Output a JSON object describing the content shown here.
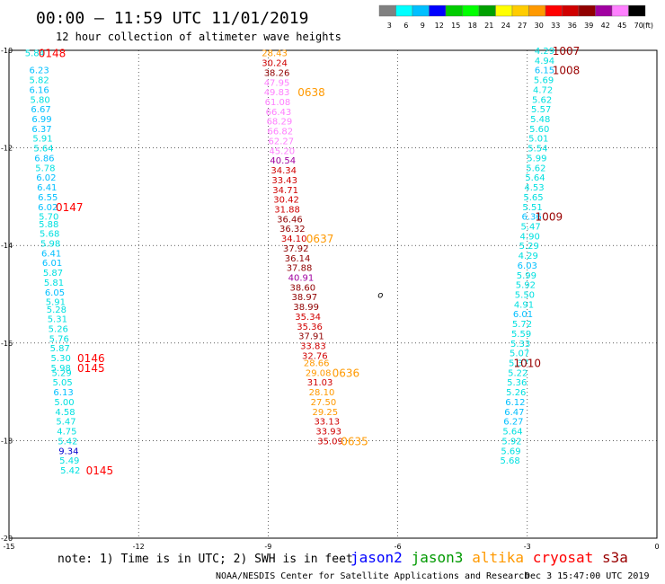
{
  "header": {
    "title": "00:00 – 11:59 UTC 11/01/2019",
    "subtitle": "12 hour collection of altimeter wave heights",
    "colorbar_unit": "(ft)",
    "colorbar_ticks": [
      "3",
      "6",
      "9",
      "12",
      "15",
      "18",
      "21",
      "24",
      "27",
      "30",
      "33",
      "36",
      "39",
      "42",
      "45",
      "70"
    ],
    "colorbar_colors": [
      "#808080",
      "#00ffff",
      "#00bfff",
      "#0000ff",
      "#00cc00",
      "#00ff00",
      "#00a000",
      "#ffff00",
      "#ffcc00",
      "#ff9900",
      "#ff0000",
      "#d00000",
      "#900000",
      "#a000a0",
      "#ff80ff",
      "#000000"
    ]
  },
  "footer": {
    "note": "note:  1) Time is in UTC; 2) SWH is in feet",
    "legend": [
      {
        "label": "jason2",
        "color": "#0000ff"
      },
      {
        "label": "jason3",
        "color": "#009900"
      },
      {
        "label": "altika",
        "color": "#ff9900"
      },
      {
        "label": "cryosat",
        "color": "#ff0000"
      },
      {
        "label": "s3a",
        "color": "#990000"
      }
    ],
    "credit": "NOAA/NESDIS Center for Satellite Applications and Research",
    "timestamp": "Dec  3 15:47:00 UTC 2019"
  },
  "chart_data": {
    "type": "scatter",
    "xlim": [
      -15,
      0
    ],
    "ylim": [
      -20,
      -10
    ],
    "xticks": [
      "-15",
      "-12",
      "-9",
      "-6",
      "-3",
      "0"
    ],
    "yticks": [
      "-10",
      "-12",
      "-14",
      "-16",
      "-18",
      "-20"
    ],
    "grid": true,
    "tracks": [
      {
        "name": "left",
        "points": [
          {
            "x": -14.4,
            "y": -10.05,
            "v": "5.84",
            "c": "#00e0e0"
          },
          {
            "x": -14.3,
            "y": -10.4,
            "v": "6.23",
            "c": "#00bfff"
          },
          {
            "x": -14.3,
            "y": -10.6,
            "v": "5.82",
            "c": "#00e0e0"
          },
          {
            "x": -14.3,
            "y": -10.8,
            "v": "6.16",
            "c": "#00bfff"
          },
          {
            "x": -14.28,
            "y": -11.0,
            "v": "5.80",
            "c": "#00e0e0"
          },
          {
            "x": -14.26,
            "y": -11.2,
            "v": "6.67",
            "c": "#00bfff"
          },
          {
            "x": -14.24,
            "y": -11.4,
            "v": "6.99",
            "c": "#00bfff"
          },
          {
            "x": -14.24,
            "y": -11.6,
            "v": "6.37",
            "c": "#00bfff"
          },
          {
            "x": -14.22,
            "y": -11.8,
            "v": "5.91",
            "c": "#00e0e0"
          },
          {
            "x": -14.2,
            "y": -12.0,
            "v": "5.64",
            "c": "#00e0e0"
          },
          {
            "x": -14.18,
            "y": -12.2,
            "v": "6.86",
            "c": "#00bfff"
          },
          {
            "x": -14.16,
            "y": -12.4,
            "v": "5.78",
            "c": "#00e0e0"
          },
          {
            "x": -14.14,
            "y": -12.6,
            "v": "6.02",
            "c": "#00bfff"
          },
          {
            "x": -14.12,
            "y": -12.8,
            "v": "6.41",
            "c": "#00bfff"
          },
          {
            "x": -14.1,
            "y": -13.0,
            "v": "6.55",
            "c": "#00bfff"
          },
          {
            "x": -14.1,
            "y": -13.2,
            "v": "6.02",
            "c": "#00bfff"
          },
          {
            "x": -14.08,
            "y": -13.4,
            "v": "5.70",
            "c": "#00e0e0"
          },
          {
            "x": -14.08,
            "y": -13.55,
            "v": "5.88",
            "c": "#00e0e0"
          },
          {
            "x": -14.06,
            "y": -13.75,
            "v": "5.68",
            "c": "#00e0e0"
          },
          {
            "x": -14.04,
            "y": -13.95,
            "v": "5.98",
            "c": "#00e0e0"
          },
          {
            "x": -14.02,
            "y": -14.15,
            "v": "6.41",
            "c": "#00bfff"
          },
          {
            "x": -14.0,
            "y": -14.35,
            "v": "6.01",
            "c": "#00bfff"
          },
          {
            "x": -13.98,
            "y": -14.55,
            "v": "5.87",
            "c": "#00e0e0"
          },
          {
            "x": -13.96,
            "y": -14.75,
            "v": "5.81",
            "c": "#00e0e0"
          },
          {
            "x": -13.94,
            "y": -14.95,
            "v": "6.05",
            "c": "#00bfff"
          },
          {
            "x": -13.92,
            "y": -15.15,
            "v": "5.91",
            "c": "#00e0e0"
          },
          {
            "x": -13.9,
            "y": -15.3,
            "v": "5.28",
            "c": "#00e0e0"
          },
          {
            "x": -13.88,
            "y": -15.5,
            "v": "5.31",
            "c": "#00e0e0"
          },
          {
            "x": -13.86,
            "y": -15.7,
            "v": "5.26",
            "c": "#00e0e0"
          },
          {
            "x": -13.84,
            "y": -15.9,
            "v": "5.76",
            "c": "#00e0e0"
          },
          {
            "x": -13.82,
            "y": -16.1,
            "v": "5.87",
            "c": "#00e0e0"
          },
          {
            "x": -13.8,
            "y": -16.3,
            "v": "5.30",
            "c": "#00e0e0"
          },
          {
            "x": -13.8,
            "y": -16.5,
            "v": "5.98",
            "c": "#00e0e0"
          },
          {
            "x": -13.78,
            "y": -16.6,
            "v": "5.29",
            "c": "#00e0e0"
          },
          {
            "x": -13.76,
            "y": -16.8,
            "v": "5.05",
            "c": "#00e0e0"
          },
          {
            "x": -13.74,
            "y": -17.0,
            "v": "6.13",
            "c": "#00bfff"
          },
          {
            "x": -13.72,
            "y": -17.2,
            "v": "5.00",
            "c": "#00e0e0"
          },
          {
            "x": -13.7,
            "y": -17.4,
            "v": "4.58",
            "c": "#00e0e0"
          },
          {
            "x": -13.68,
            "y": -17.6,
            "v": "5.47",
            "c": "#00e0e0"
          },
          {
            "x": -13.66,
            "y": -17.8,
            "v": "4.75",
            "c": "#00e0e0"
          },
          {
            "x": -13.64,
            "y": -18.0,
            "v": "5.42",
            "c": "#00e0e0"
          },
          {
            "x": -13.62,
            "y": -18.2,
            "v": "9.34",
            "c": "#0000cc"
          },
          {
            "x": -13.6,
            "y": -18.4,
            "v": "5.49",
            "c": "#00e0e0"
          },
          {
            "x": -13.58,
            "y": -18.6,
            "v": "5.42",
            "c": "#00e0e0"
          }
        ]
      },
      {
        "name": "middle",
        "points": [
          {
            "x": -8.85,
            "y": -10.05,
            "v": "28.43",
            "c": "#ff9900"
          },
          {
            "x": -8.85,
            "y": -10.25,
            "v": "30.24",
            "c": "#d00000"
          },
          {
            "x": -8.8,
            "y": -10.45,
            "v": "38.26",
            "c": "#900000"
          },
          {
            "x": -8.8,
            "y": -10.65,
            "v": "47.95",
            "c": "#ff80ff"
          },
          {
            "x": -8.8,
            "y": -10.85,
            "v": "49.83",
            "c": "#ff80ff"
          },
          {
            "x": -8.78,
            "y": -11.05,
            "v": "61.08",
            "c": "#ff80ff"
          },
          {
            "x": -8.76,
            "y": -11.25,
            "v": "66.43",
            "c": "#ff80ff"
          },
          {
            "x": -8.74,
            "y": -11.45,
            "v": "68.29",
            "c": "#ff80ff"
          },
          {
            "x": -8.72,
            "y": -11.65,
            "v": "66.82",
            "c": "#ff80ff"
          },
          {
            "x": -8.7,
            "y": -11.85,
            "v": "62.27",
            "c": "#ff80ff"
          },
          {
            "x": -8.68,
            "y": -12.05,
            "v": "45.20",
            "c": "#ff80ff"
          },
          {
            "x": -8.66,
            "y": -12.25,
            "v": "40.54",
            "c": "#a000a0"
          },
          {
            "x": -8.64,
            "y": -12.45,
            "v": "34.34",
            "c": "#d00000"
          },
          {
            "x": -8.62,
            "y": -12.65,
            "v": "33.43",
            "c": "#d00000"
          },
          {
            "x": -8.6,
            "y": -12.85,
            "v": "34.71",
            "c": "#d00000"
          },
          {
            "x": -8.58,
            "y": -13.05,
            "v": "30.42",
            "c": "#d00000"
          },
          {
            "x": -8.56,
            "y": -13.25,
            "v": "31.88",
            "c": "#d00000"
          },
          {
            "x": -8.5,
            "y": -13.45,
            "v": "36.46",
            "c": "#900000"
          },
          {
            "x": -8.44,
            "y": -13.65,
            "v": "36.32",
            "c": "#900000"
          },
          {
            "x": -8.4,
            "y": -13.85,
            "v": "34.10",
            "c": "#d00000"
          },
          {
            "x": -8.36,
            "y": -14.05,
            "v": "37.92",
            "c": "#900000"
          },
          {
            "x": -8.32,
            "y": -14.25,
            "v": "36.14",
            "c": "#900000"
          },
          {
            "x": -8.28,
            "y": -14.45,
            "v": "37.88",
            "c": "#900000"
          },
          {
            "x": -8.24,
            "y": -14.65,
            "v": "40.91",
            "c": "#a000a0"
          },
          {
            "x": -8.2,
            "y": -14.85,
            "v": "38.60",
            "c": "#900000"
          },
          {
            "x": -8.16,
            "y": -15.05,
            "v": "38.97",
            "c": "#900000"
          },
          {
            "x": -8.12,
            "y": -15.25,
            "v": "38.99",
            "c": "#900000"
          },
          {
            "x": -8.08,
            "y": -15.45,
            "v": "35.34",
            "c": "#d00000"
          },
          {
            "x": -8.04,
            "y": -15.65,
            "v": "35.36",
            "c": "#d00000"
          },
          {
            "x": -8.0,
            "y": -15.85,
            "v": "37.91",
            "c": "#900000"
          },
          {
            "x": -7.96,
            "y": -16.05,
            "v": "33.83",
            "c": "#d00000"
          },
          {
            "x": -7.92,
            "y": -16.25,
            "v": "32.76",
            "c": "#d00000"
          },
          {
            "x": -7.88,
            "y": -16.4,
            "v": "28.66",
            "c": "#ff9900"
          },
          {
            "x": -7.84,
            "y": -16.6,
            "v": "29.08",
            "c": "#ff9900"
          },
          {
            "x": -7.8,
            "y": -16.8,
            "v": "31.03",
            "c": "#d00000"
          },
          {
            "x": -7.76,
            "y": -17.0,
            "v": "28.10",
            "c": "#ff9900"
          },
          {
            "x": -7.72,
            "y": -17.2,
            "v": "27.50",
            "c": "#ff9900"
          },
          {
            "x": -7.68,
            "y": -17.4,
            "v": "29.25",
            "c": "#ff9900"
          },
          {
            "x": -7.64,
            "y": -17.6,
            "v": "33.13",
            "c": "#d00000"
          },
          {
            "x": -7.6,
            "y": -17.8,
            "v": "33.93",
            "c": "#d00000"
          },
          {
            "x": -7.56,
            "y": -18.0,
            "v": "35.09",
            "c": "#d00000"
          }
        ]
      },
      {
        "name": "right",
        "points": [
          {
            "x": -2.6,
            "y": -10.0,
            "v": "4.29",
            "c": "#00e0e0"
          },
          {
            "x": -2.6,
            "y": -10.2,
            "v": "4.94",
            "c": "#00e0e0"
          },
          {
            "x": -2.6,
            "y": -10.4,
            "v": "6.15",
            "c": "#00bfff"
          },
          {
            "x": -2.62,
            "y": -10.6,
            "v": "5.69",
            "c": "#00e0e0"
          },
          {
            "x": -2.64,
            "y": -10.8,
            "v": "4.72",
            "c": "#00e0e0"
          },
          {
            "x": -2.66,
            "y": -11.0,
            "v": "5.62",
            "c": "#00e0e0"
          },
          {
            "x": -2.68,
            "y": -11.2,
            "v": "5.57",
            "c": "#00e0e0"
          },
          {
            "x": -2.7,
            "y": -11.4,
            "v": "5.48",
            "c": "#00e0e0"
          },
          {
            "x": -2.72,
            "y": -11.6,
            "v": "5.60",
            "c": "#00e0e0"
          },
          {
            "x": -2.74,
            "y": -11.8,
            "v": "5.01",
            "c": "#00e0e0"
          },
          {
            "x": -2.76,
            "y": -12.0,
            "v": "5.54",
            "c": "#00e0e0"
          },
          {
            "x": -2.78,
            "y": -12.2,
            "v": "5.99",
            "c": "#00e0e0"
          },
          {
            "x": -2.8,
            "y": -12.4,
            "v": "5.62",
            "c": "#00e0e0"
          },
          {
            "x": -2.82,
            "y": -12.6,
            "v": "5.64",
            "c": "#00e0e0"
          },
          {
            "x": -2.84,
            "y": -12.8,
            "v": "4.53",
            "c": "#00e0e0"
          },
          {
            "x": -2.86,
            "y": -13.0,
            "v": "5.65",
            "c": "#00e0e0"
          },
          {
            "x": -2.88,
            "y": -13.2,
            "v": "5.51",
            "c": "#00e0e0"
          },
          {
            "x": -2.9,
            "y": -13.4,
            "v": "6.36",
            "c": "#00bfff"
          },
          {
            "x": -2.92,
            "y": -13.6,
            "v": "5.47",
            "c": "#00e0e0"
          },
          {
            "x": -2.94,
            "y": -13.8,
            "v": "4.90",
            "c": "#00e0e0"
          },
          {
            "x": -2.96,
            "y": -14.0,
            "v": "5.29",
            "c": "#00e0e0"
          },
          {
            "x": -2.98,
            "y": -14.2,
            "v": "4.29",
            "c": "#00e0e0"
          },
          {
            "x": -3.0,
            "y": -14.4,
            "v": "6.03",
            "c": "#00bfff"
          },
          {
            "x": -3.02,
            "y": -14.6,
            "v": "5.99",
            "c": "#00e0e0"
          },
          {
            "x": -3.04,
            "y": -14.8,
            "v": "5.92",
            "c": "#00e0e0"
          },
          {
            "x": -3.06,
            "y": -15.0,
            "v": "5.50",
            "c": "#00e0e0"
          },
          {
            "x": -3.08,
            "y": -15.2,
            "v": "4.91",
            "c": "#00e0e0"
          },
          {
            "x": -3.1,
            "y": -15.4,
            "v": "6.01",
            "c": "#00bfff"
          },
          {
            "x": -3.12,
            "y": -15.6,
            "v": "5.72",
            "c": "#00e0e0"
          },
          {
            "x": -3.14,
            "y": -15.8,
            "v": "5.59",
            "c": "#00e0e0"
          },
          {
            "x": -3.16,
            "y": -16.0,
            "v": "5.33",
            "c": "#00e0e0"
          },
          {
            "x": -3.18,
            "y": -16.2,
            "v": "5.07",
            "c": "#00e0e0"
          },
          {
            "x": -3.2,
            "y": -16.4,
            "v": "5.37",
            "c": "#00e0e0"
          },
          {
            "x": -3.22,
            "y": -16.6,
            "v": "5.22",
            "c": "#00e0e0"
          },
          {
            "x": -3.24,
            "y": -16.8,
            "v": "5.36",
            "c": "#00e0e0"
          },
          {
            "x": -3.26,
            "y": -17.0,
            "v": "5.26",
            "c": "#00e0e0"
          },
          {
            "x": -3.28,
            "y": -17.2,
            "v": "6.12",
            "c": "#00bfff"
          },
          {
            "x": -3.3,
            "y": -17.4,
            "v": "6.47",
            "c": "#00bfff"
          },
          {
            "x": -3.32,
            "y": -17.6,
            "v": "6.27",
            "c": "#00bfff"
          },
          {
            "x": -3.34,
            "y": -17.8,
            "v": "5.64",
            "c": "#00e0e0"
          },
          {
            "x": -3.36,
            "y": -18.0,
            "v": "5.92",
            "c": "#00e0e0"
          },
          {
            "x": -3.38,
            "y": -18.2,
            "v": "5.69",
            "c": "#00e0e0"
          },
          {
            "x": -3.4,
            "y": -18.4,
            "v": "5.68",
            "c": "#00e0e0"
          }
        ]
      }
    ],
    "time_labels": [
      {
        "x": -14.0,
        "y": -10.05,
        "v": "0148",
        "c": "#ff0000"
      },
      {
        "x": -13.6,
        "y": -13.2,
        "v": "0147",
        "c": "#ff0000"
      },
      {
        "x": -13.1,
        "y": -16.3,
        "v": "0146",
        "c": "#ff0000"
      },
      {
        "x": -13.1,
        "y": -16.5,
        "v": "0145",
        "c": "#ff0000"
      },
      {
        "x": -12.9,
        "y": -18.6,
        "v": "0145",
        "c": "#ff0000"
      },
      {
        "x": -8.0,
        "y": -10.85,
        "v": "0638",
        "c": "#ff9900"
      },
      {
        "x": -7.8,
        "y": -13.85,
        "v": "0637",
        "c": "#ff9900"
      },
      {
        "x": -7.2,
        "y": -16.6,
        "v": "0636",
        "c": "#ff9900"
      },
      {
        "x": -7.0,
        "y": -18.0,
        "v": "0635",
        "c": "#ff9900"
      },
      {
        "x": -2.1,
        "y": -10.0,
        "v": "1007",
        "c": "#990000"
      },
      {
        "x": -2.1,
        "y": -10.4,
        "v": "1008",
        "c": "#990000"
      },
      {
        "x": -2.5,
        "y": -13.4,
        "v": "1009",
        "c": "#990000"
      },
      {
        "x": -3.0,
        "y": -16.4,
        "v": "1010",
        "c": "#990000"
      }
    ],
    "marker": {
      "x": -6.4,
      "y": -15.0,
      "v": "o"
    }
  }
}
